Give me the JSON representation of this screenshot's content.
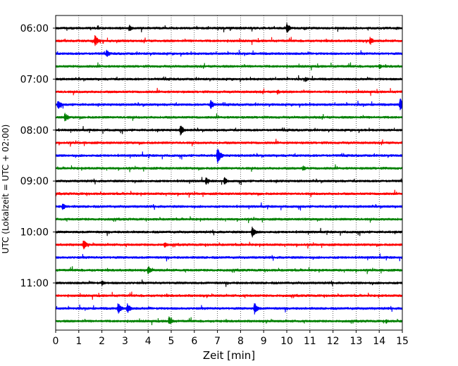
{
  "chart_data": {
    "type": "line",
    "subtype": "helicorder-seismogram",
    "xlabel": "Zeit  [min]",
    "ylabel": "UTC (Lokalzeit = UTC + 02:00)",
    "xlim": [
      0,
      15
    ],
    "x_ticks": [
      "0",
      "1",
      "2",
      "3",
      "4",
      "5",
      "6",
      "7",
      "8",
      "9",
      "10",
      "11",
      "12",
      "13",
      "14",
      "15"
    ],
    "vertical_grid": "dotted, every 1 min",
    "trace_interval_min": 15,
    "trace_colors": [
      "#000000",
      "#ff0000",
      "#0000ff",
      "#008000"
    ],
    "y_tick_labels": [
      "06:00",
      "07:00",
      "08:00",
      "09:00",
      "10:00",
      "11:00"
    ],
    "y_tick_every_n_traces": 4,
    "trace_count": 24,
    "traces": [
      {
        "start": "06:00",
        "color": "#000000",
        "events_min": [
          3.2,
          10.0
        ],
        "event_amplitude": [
          0.35,
          0.55
        ]
      },
      {
        "start": "06:15",
        "color": "#ff0000",
        "events_min": [
          1.7,
          13.6
        ],
        "event_amplitude": [
          0.6,
          0.45
        ]
      },
      {
        "start": "06:30",
        "color": "#0000ff",
        "events_min": [
          2.2
        ],
        "event_amplitude": [
          0.4
        ]
      },
      {
        "start": "06:45",
        "color": "#008000",
        "events_min": [
          14.0
        ],
        "event_amplitude": [
          0.3
        ]
      },
      {
        "start": "07:00",
        "color": "#000000",
        "events_min": [
          10.8
        ],
        "event_amplitude": [
          0.3
        ]
      },
      {
        "start": "07:15",
        "color": "#ff0000",
        "events_min": [
          9.6
        ],
        "event_amplitude": [
          0.3
        ]
      },
      {
        "start": "07:30",
        "color": "#0000ff",
        "events_min": [
          0.1,
          6.7,
          14.9
        ],
        "event_amplitude": [
          0.5,
          0.55,
          0.7
        ]
      },
      {
        "start": "07:45",
        "color": "#008000",
        "events_min": [
          0.4
        ],
        "event_amplitude": [
          0.5
        ]
      },
      {
        "start": "08:00",
        "color": "#000000",
        "events_min": [
          5.4
        ],
        "event_amplitude": [
          0.55
        ]
      },
      {
        "start": "08:15",
        "color": "#ff0000",
        "events_min": [],
        "event_amplitude": []
      },
      {
        "start": "08:30",
        "color": "#0000ff",
        "events_min": [
          7.0
        ],
        "event_amplitude": [
          0.8
        ]
      },
      {
        "start": "08:45",
        "color": "#008000",
        "events_min": [
          10.7
        ],
        "event_amplitude": [
          0.3
        ]
      },
      {
        "start": "09:00",
        "color": "#000000",
        "events_min": [
          6.5,
          7.3
        ],
        "event_amplitude": [
          0.4,
          0.4
        ]
      },
      {
        "start": "09:15",
        "color": "#ff0000",
        "events_min": [],
        "event_amplitude": []
      },
      {
        "start": "09:30",
        "color": "#0000ff",
        "events_min": [
          0.3
        ],
        "event_amplitude": [
          0.4
        ]
      },
      {
        "start": "09:45",
        "color": "#008000",
        "events_min": [],
        "event_amplitude": []
      },
      {
        "start": "10:00",
        "color": "#000000",
        "events_min": [
          8.5
        ],
        "event_amplitude": [
          0.6
        ]
      },
      {
        "start": "10:15",
        "color": "#ff0000",
        "events_min": [
          1.2,
          4.7
        ],
        "event_amplitude": [
          0.55,
          0.35
        ]
      },
      {
        "start": "10:30",
        "color": "#0000ff",
        "events_min": [],
        "event_amplitude": []
      },
      {
        "start": "10:45",
        "color": "#008000",
        "events_min": [
          4.0
        ],
        "event_amplitude": [
          0.45
        ]
      },
      {
        "start": "11:00",
        "color": "#000000",
        "events_min": [
          2.0
        ],
        "event_amplitude": [
          0.3
        ]
      },
      {
        "start": "11:15",
        "color": "#ff0000",
        "events_min": [],
        "event_amplitude": []
      },
      {
        "start": "11:30",
        "color": "#0000ff",
        "events_min": [
          2.7,
          3.1,
          8.6
        ],
        "event_amplitude": [
          0.6,
          0.55,
          0.6
        ]
      },
      {
        "start": "11:45",
        "color": "#008000",
        "events_min": [
          4.9,
          14.3
        ],
        "event_amplitude": [
          0.5,
          0.25
        ]
      }
    ]
  }
}
